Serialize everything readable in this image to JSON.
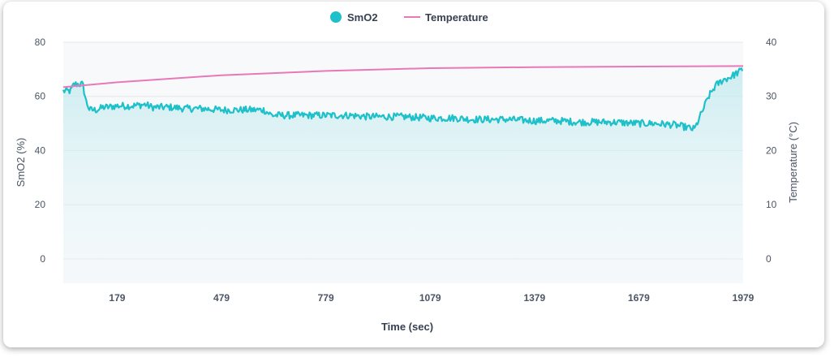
{
  "chart_data": {
    "type": "line",
    "legend": {
      "position": "top-center"
    },
    "xlabel": "Time (sec)",
    "ylabel": "SmO2 (%)",
    "y2label": "Temperature (°C)",
    "xlim": [
      24,
      1979
    ],
    "ylim": [
      -9,
      80
    ],
    "y2lim": [
      -4.5,
      40
    ],
    "x_ticks": [
      179,
      479,
      779,
      1079,
      1379,
      1679,
      1979
    ],
    "y_ticks": [
      0,
      20,
      40,
      60,
      80
    ],
    "y2_ticks": [
      0,
      10,
      20,
      30,
      40
    ],
    "grid": true,
    "series": [
      {
        "name": "SmO2",
        "color": "#1ec0c9",
        "axis": "left",
        "marker": "circle",
        "noise": 1.3,
        "x": [
          24,
          35,
          45,
          55,
          65,
          80,
          90,
          100,
          120,
          140,
          150,
          179,
          220,
          260,
          279,
          330,
          379,
          420,
          479,
          550,
          600,
          625,
          650,
          700,
          779,
          850,
          900,
          1000,
          1079,
          1150,
          1200,
          1300,
          1379,
          1450,
          1500,
          1600,
          1679,
          1720,
          1780,
          1800,
          1820,
          1830,
          1840,
          1860,
          1880,
          1900,
          1920,
          1940,
          1960,
          1979
        ],
        "y": [
          62,
          62,
          62,
          64.5,
          64.5,
          64.5,
          58,
          55,
          55,
          56,
          56,
          56.5,
          56.5,
          57,
          56,
          56,
          55.5,
          55.5,
          55,
          55,
          55,
          53,
          53,
          53,
          53,
          53,
          52.5,
          52.5,
          52,
          52,
          51.5,
          51.5,
          51,
          51,
          50.5,
          50.5,
          50,
          50,
          49.5,
          49,
          48.5,
          48,
          48,
          54,
          60,
          64,
          66,
          67,
          68.5,
          70
        ]
      },
      {
        "name": "Temperature",
        "color": "#e879b9",
        "axis": "right",
        "marker": "line",
        "x": [
          24,
          179,
          479,
          779,
          1079,
          1379,
          1679,
          1979
        ],
        "y": [
          31.7,
          32.6,
          33.9,
          34.7,
          35.2,
          35.4,
          35.5,
          35.6
        ]
      }
    ]
  }
}
